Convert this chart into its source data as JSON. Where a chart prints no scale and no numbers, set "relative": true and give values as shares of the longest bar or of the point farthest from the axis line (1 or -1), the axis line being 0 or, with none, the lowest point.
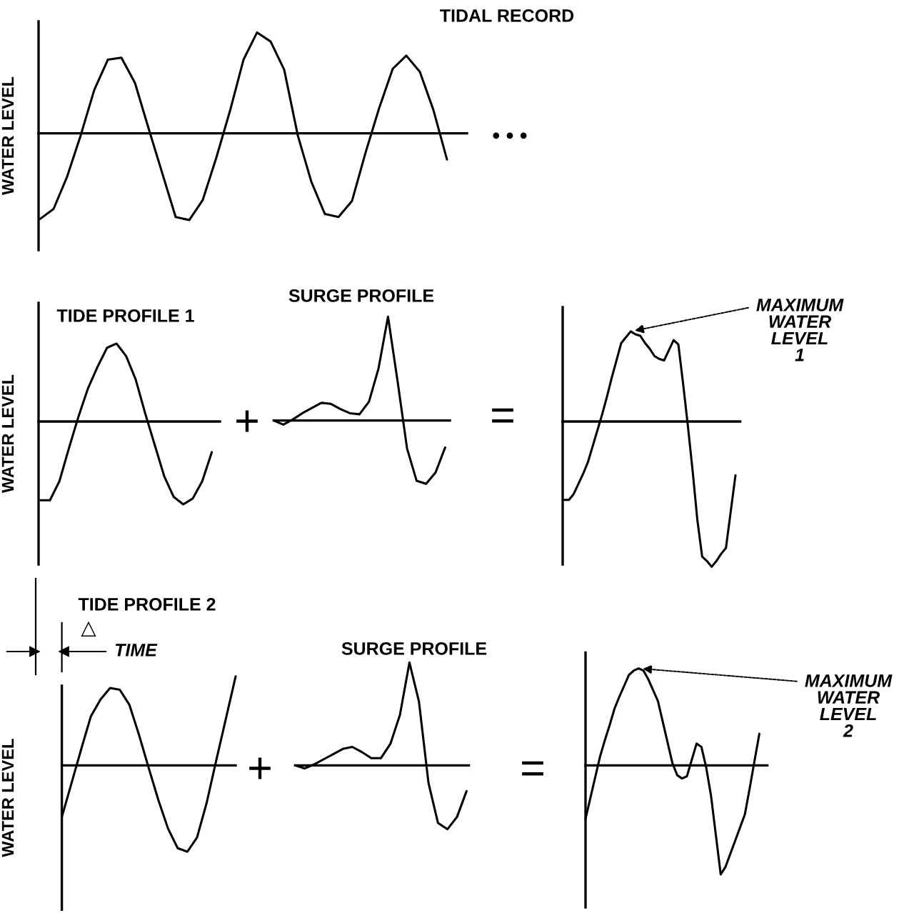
{
  "chart_data": [
    {
      "type": "line",
      "title": "TIDAL RECORD",
      "ylabel": "WATER LEVEL",
      "relative": true,
      "annotations": [
        "• • •"
      ],
      "categories": [
        null,
        null,
        null,
        null,
        null,
        null,
        null,
        null,
        null,
        null,
        null,
        null,
        null,
        null,
        null,
        null,
        null,
        null,
        null,
        null,
        null,
        null,
        null,
        null,
        null,
        null,
        null,
        null,
        null,
        null,
        null
      ],
      "series": [
        {
          "color": "#000000",
          "values": [
            -0.85,
            -0.75,
            -0.43,
            -0.02,
            0.43,
            0.73,
            0.75,
            0.5,
            0.05,
            -0.39,
            -0.83,
            -0.86,
            -0.66,
            -0.24,
            0.22,
            0.73,
            1,
            0.91,
            0.63,
            -0.02,
            -0.48,
            -0.8,
            -0.83,
            -0.67,
            -0.19,
            0.25,
            0.64,
            0.77,
            0.61,
            0.23,
            -0.26
          ]
        }
      ]
    },
    {
      "type": "line",
      "title": "TIDE PROFILE 1",
      "ylabel": "WATER LEVEL",
      "relative": true,
      "annotations": [
        "+"
      ],
      "categories": [
        null,
        null,
        null,
        null,
        null,
        null,
        null,
        null,
        null,
        null,
        null,
        null,
        null,
        null,
        null,
        null,
        null,
        null,
        null
      ],
      "series": [
        {
          "color": "#000000",
          "values": [
            -0.95,
            -0.95,
            -0.72,
            -0.32,
            0.06,
            0.4,
            0.66,
            0.89,
            0.94,
            0.79,
            0.51,
            0.1,
            -0.28,
            -0.66,
            -0.91,
            -1,
            -0.93,
            -0.72,
            -0.37
          ]
        }
      ]
    },
    {
      "type": "line",
      "title": "SURGE PROFILE",
      "relative": true,
      "annotations": [
        "="
      ],
      "categories": [
        null,
        null,
        null,
        null,
        null,
        null,
        null,
        null,
        null,
        null,
        null,
        null,
        null,
        null,
        null,
        null,
        null,
        null,
        null
      ],
      "series": [
        {
          "color": "#000000",
          "values": [
            0,
            -0.04,
            0.01,
            0.07,
            0.12,
            0.17,
            0.16,
            0.11,
            0.07,
            0.06,
            0.18,
            0.5,
            1,
            0.38,
            -0.27,
            -0.58,
            -0.61,
            -0.5,
            -0.26
          ]
        }
      ]
    },
    {
      "type": "line",
      "relative": true,
      "annotations": [
        "MAXIMUM\nWATER\nLEVEL\n1"
      ],
      "categories": [
        null,
        null,
        null,
        null,
        null,
        null,
        null,
        null,
        null,
        null,
        null,
        null,
        null,
        null,
        null,
        null,
        null,
        null,
        null,
        null,
        null,
        null,
        null,
        null,
        null,
        null,
        null,
        null,
        null,
        null,
        null,
        null,
        null,
        null,
        null,
        null,
        null
      ],
      "series": [
        {
          "color": "#000000",
          "values": [
            -0.54,
            -0.54,
            -0.5,
            -0.43,
            -0.36,
            -0.28,
            -0.17,
            -0.06,
            0.05,
            0.17,
            0.3,
            0.42,
            0.54,
            0.58,
            0.62,
            0.6,
            0.59,
            0.54,
            0.5,
            0.45,
            0.43,
            0.42,
            0.49,
            0.56,
            0.53,
            0.26,
            -0.03,
            -0.34,
            -0.68,
            -0.93,
            -0.96,
            -1,
            -0.96,
            -0.91,
            -0.87,
            -0.62,
            -0.37
          ]
        }
      ]
    },
    {
      "type": "line",
      "title": "TIDE PROFILE 2",
      "ylabel": "WATER LEVEL",
      "relative": true,
      "annotations": [
        "△",
        "TIME",
        "+"
      ],
      "categories": [
        null,
        null,
        null,
        null,
        null,
        null,
        null,
        null,
        null,
        null,
        null,
        null,
        null,
        null,
        null,
        null,
        null,
        null,
        null
      ],
      "series": [
        {
          "color": "#000000",
          "values": [
            -0.58,
            -0.2,
            0.18,
            0.55,
            0.74,
            0.87,
            0.85,
            0.68,
            0.34,
            -0.03,
            -0.39,
            -0.71,
            -0.93,
            -0.97,
            -0.81,
            -0.42,
            0.06,
            0.53,
            1
          ]
        }
      ]
    },
    {
      "type": "line",
      "title": "SURGE PROFILE",
      "relative": true,
      "annotations": [
        "="
      ],
      "categories": [
        null,
        null,
        null,
        null,
        null,
        null,
        null,
        null,
        null,
        null,
        null,
        null,
        null,
        null,
        null,
        null,
        null,
        null,
        null
      ],
      "series": [
        {
          "color": "#000000",
          "values": [
            0,
            -0.03,
            0.01,
            0.06,
            0.11,
            0.16,
            0.18,
            0.13,
            0.07,
            0.07,
            0.21,
            0.49,
            1,
            0.62,
            -0.17,
            -0.56,
            -0.62,
            -0.5,
            -0.25
          ]
        }
      ]
    },
    {
      "type": "line",
      "relative": true,
      "annotations": [
        "MAXIMUM\nWATER\nLEVEL\n2"
      ],
      "categories": [
        null,
        null,
        null,
        null,
        null,
        null,
        null,
        null,
        null,
        null,
        null,
        null,
        null,
        null,
        null,
        null,
        null,
        null,
        null,
        null,
        null,
        null,
        null,
        null,
        null,
        null,
        null,
        null,
        null,
        null,
        null,
        null,
        null,
        null,
        null,
        null,
        null
      ],
      "series": [
        {
          "color": "#000000",
          "values": [
            -0.49,
            -0.3,
            -0.11,
            0.08,
            0.23,
            0.37,
            0.52,
            0.63,
            0.73,
            0.83,
            0.87,
            0.89,
            0.87,
            0.79,
            0.69,
            0.59,
            0.4,
            0.21,
            0.02,
            -0.09,
            -0.12,
            -0.1,
            0.05,
            0.2,
            0.17,
            -0.02,
            -0.28,
            -0.64,
            -1,
            -0.93,
            -0.81,
            -0.69,
            -0.57,
            -0.45,
            -0.21,
            0.04,
            0.29
          ]
        }
      ]
    }
  ]
}
